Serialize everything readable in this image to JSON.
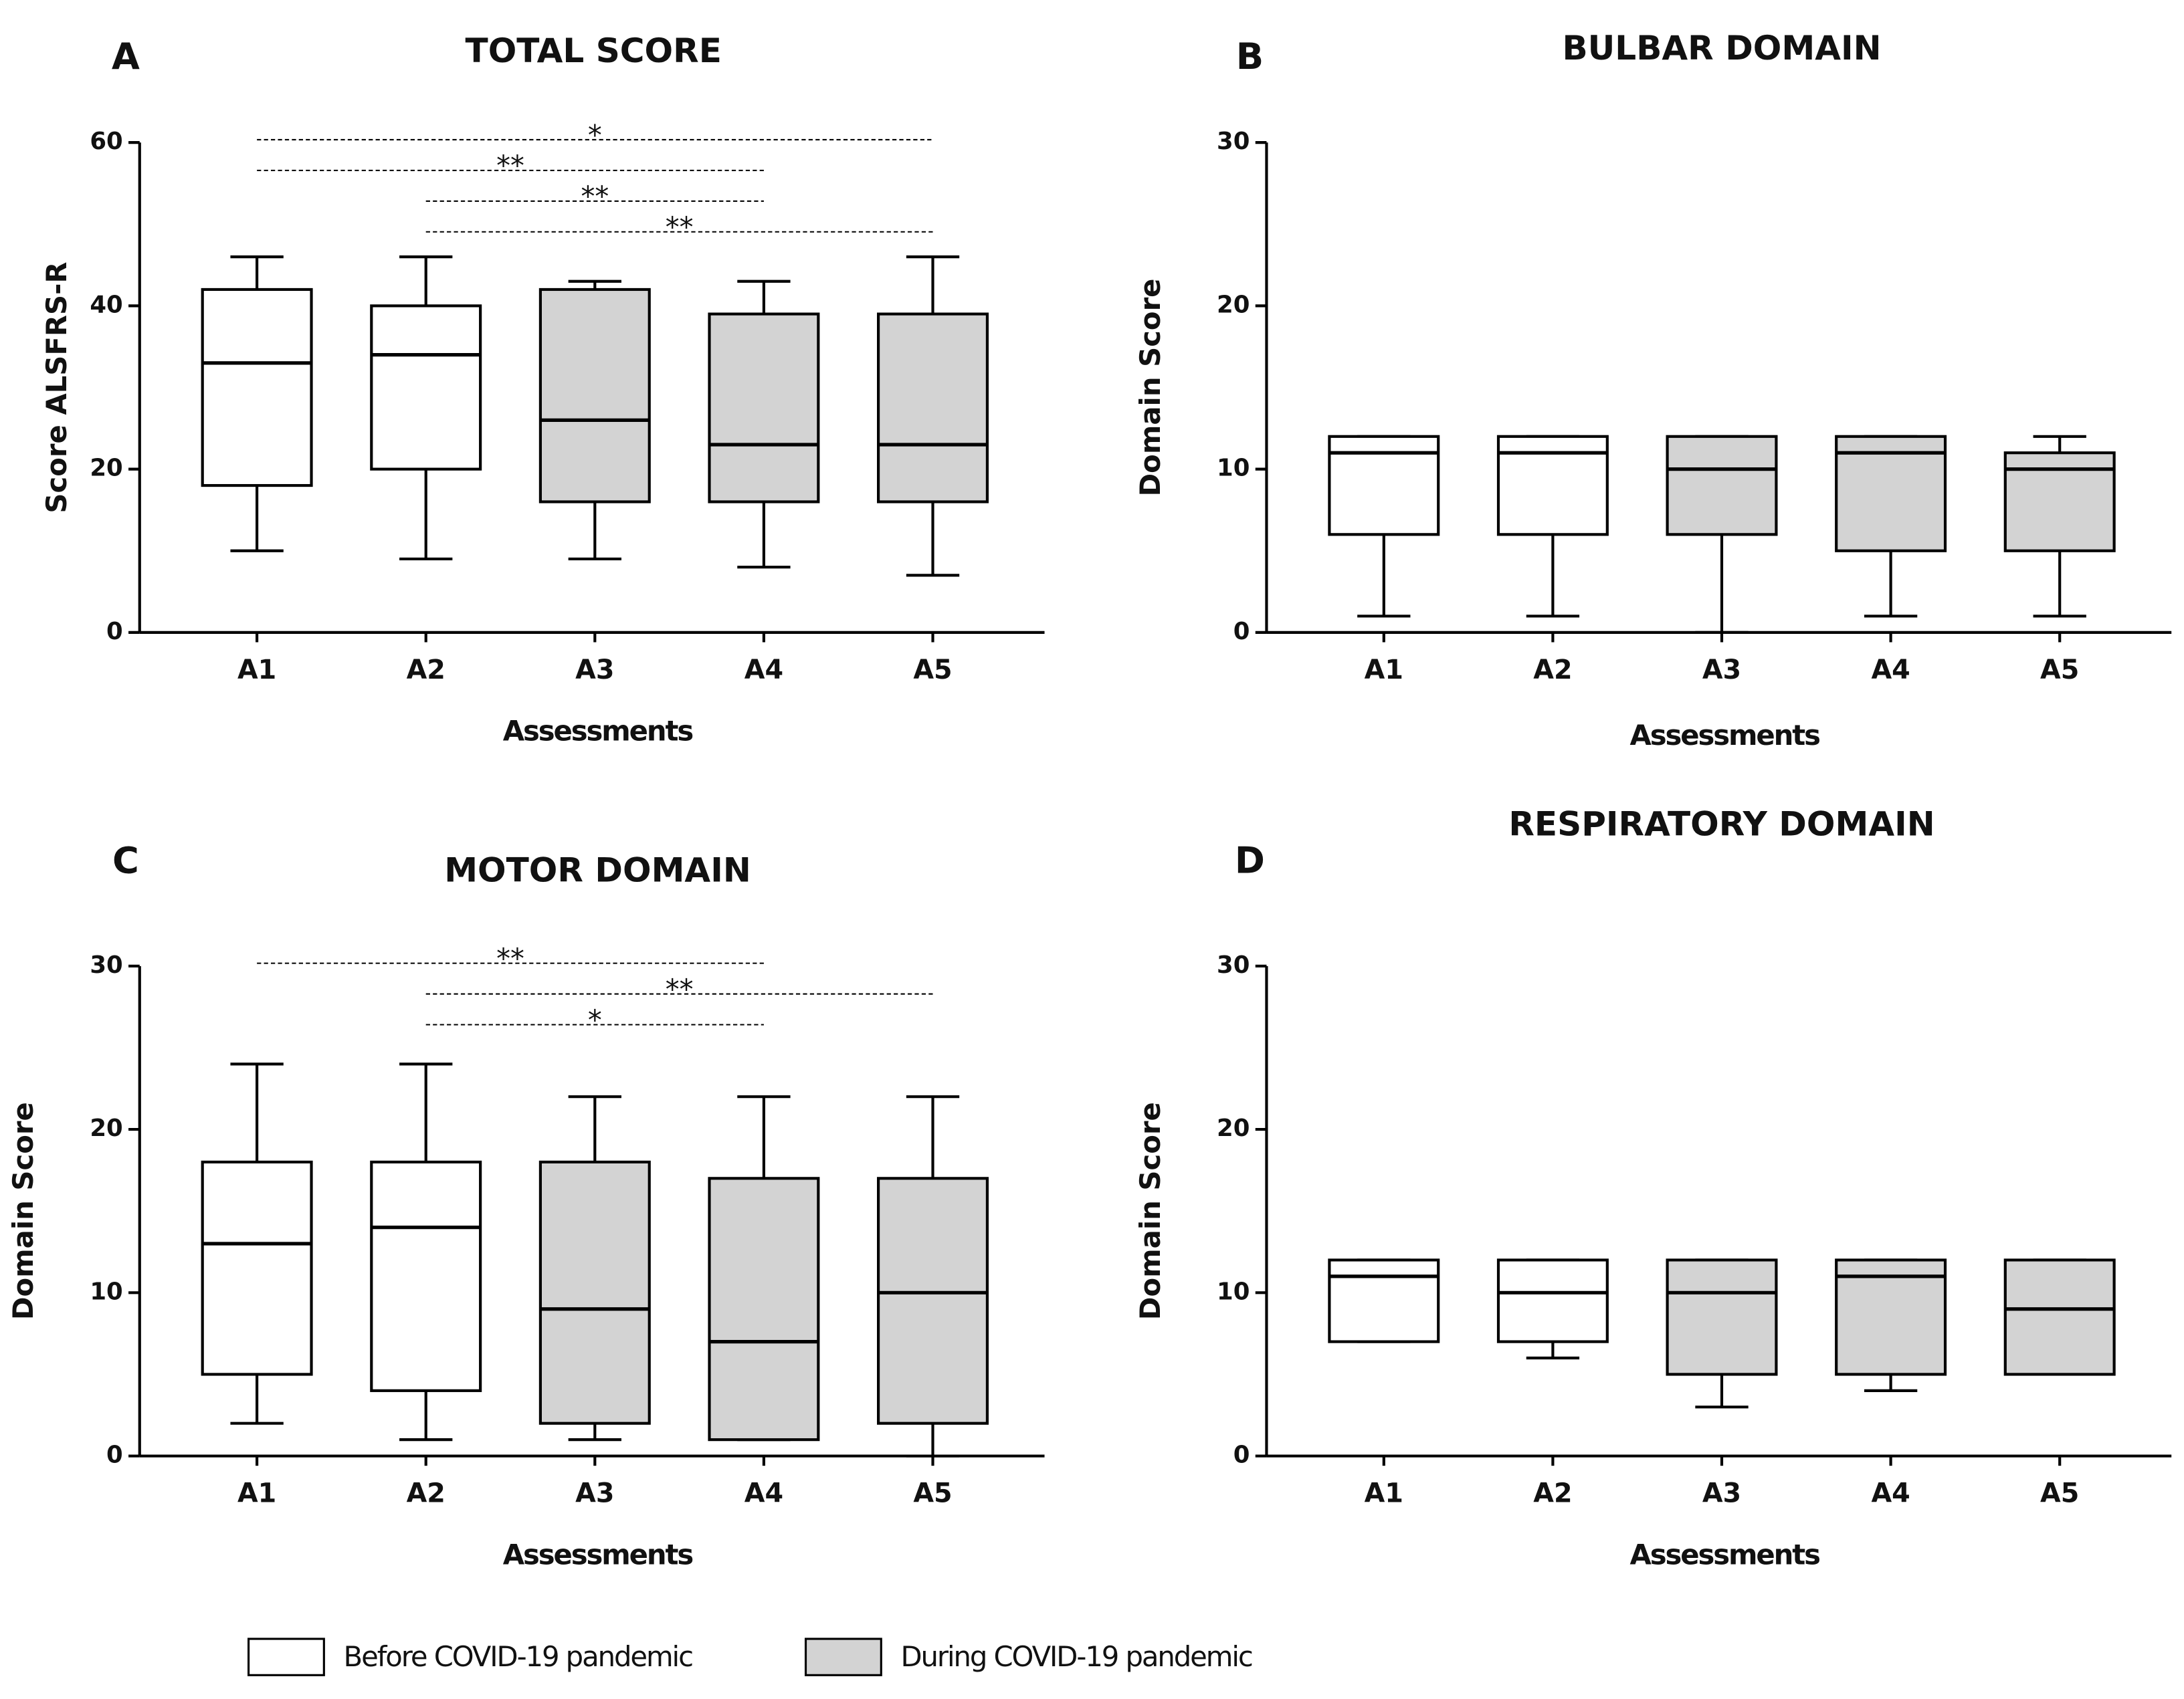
{
  "chart_data": [
    {
      "type": "box",
      "panel": "A",
      "title": "TOTAL SCORE",
      "x_label": "Assessments",
      "y_label": "Score ALSFRS-R",
      "categories": [
        "A1",
        "A2",
        "A3",
        "A4",
        "A5"
      ],
      "min": [
        10,
        9,
        9,
        8,
        7
      ],
      "q1": [
        18,
        20,
        16,
        16,
        16
      ],
      "median": [
        33,
        34,
        26,
        23,
        23
      ],
      "q3": [
        42,
        40,
        42,
        39,
        39
      ],
      "max": [
        46,
        46,
        43,
        43,
        46
      ],
      "colors": [
        "#ffffff",
        "#ffffff",
        "#d3d3d3",
        "#d3d3d3",
        "#d3d3d3"
      ],
      "ylim": [
        0,
        60
      ],
      "yticks": [
        0,
        20,
        40,
        60
      ],
      "significance": [
        {
          "from": "A1",
          "to": "A5",
          "label": "*"
        },
        {
          "from": "A1",
          "to": "A4",
          "label": "**"
        },
        {
          "from": "A2",
          "to": "A4",
          "label": "**"
        },
        {
          "from": "A2",
          "to": "A5",
          "label": "**"
        }
      ]
    },
    {
      "type": "box",
      "panel": "B",
      "title": "BULBAR DOMAIN",
      "x_label": "Assessments",
      "y_label": "Domain Score",
      "categories": [
        "A1",
        "A2",
        "A3",
        "A4",
        "A5"
      ],
      "min": [
        1,
        1,
        0,
        1,
        1
      ],
      "q1": [
        6,
        6,
        6,
        5,
        5
      ],
      "median": [
        11,
        11,
        10,
        11,
        10
      ],
      "q3": [
        12,
        12,
        12,
        12,
        11
      ],
      "max": [
        12,
        12,
        12,
        12,
        12
      ],
      "colors": [
        "#ffffff",
        "#ffffff",
        "#d3d3d3",
        "#d3d3d3",
        "#d3d3d3"
      ],
      "ylim": [
        0,
        30
      ],
      "yticks": [
        0,
        10,
        20,
        30
      ],
      "significance": []
    },
    {
      "type": "box",
      "panel": "C",
      "title": "MOTOR DOMAIN",
      "x_label": "Assessments",
      "y_label": "Domain Score",
      "categories": [
        "A1",
        "A2",
        "A3",
        "A4",
        "A5"
      ],
      "min": [
        2,
        1,
        1,
        1,
        0
      ],
      "q1": [
        5,
        4,
        2,
        1,
        2
      ],
      "median": [
        13,
        14,
        9,
        7,
        10
      ],
      "q3": [
        18,
        18,
        18,
        17,
        17
      ],
      "max": [
        24,
        24,
        22,
        22,
        22
      ],
      "colors": [
        "#ffffff",
        "#ffffff",
        "#d3d3d3",
        "#d3d3d3",
        "#d3d3d3"
      ],
      "ylim": [
        0,
        30
      ],
      "yticks": [
        0,
        10,
        20,
        30
      ],
      "significance": [
        {
          "from": "A1",
          "to": "A4",
          "label": "**"
        },
        {
          "from": "A2",
          "to": "A5",
          "label": "**"
        },
        {
          "from": "A2",
          "to": "A4",
          "label": "*"
        }
      ]
    },
    {
      "type": "box",
      "panel": "D",
      "title": "RESPIRATORY DOMAIN",
      "x_label": "Assessments",
      "y_label": "Domain Score",
      "categories": [
        "A1",
        "A2",
        "A3",
        "A4",
        "A5"
      ],
      "min": [
        7,
        6,
        3,
        4,
        5
      ],
      "q1": [
        7,
        7,
        5,
        5,
        5
      ],
      "median": [
        11,
        10,
        10,
        11,
        9
      ],
      "q3": [
        12,
        12,
        12,
        12,
        12
      ],
      "max": [
        12,
        12,
        12,
        12,
        12
      ],
      "colors": [
        "#ffffff",
        "#ffffff",
        "#d3d3d3",
        "#d3d3d3",
        "#d3d3d3"
      ],
      "ylim": [
        0,
        30
      ],
      "yticks": [
        0,
        10,
        20,
        30
      ],
      "significance": []
    }
  ],
  "legend": [
    {
      "name": "Before COVID-19 pandemic",
      "color": "#ffffff"
    },
    {
      "name": "During COVID-19 pandemic",
      "color": "#d3d3d3"
    }
  ]
}
